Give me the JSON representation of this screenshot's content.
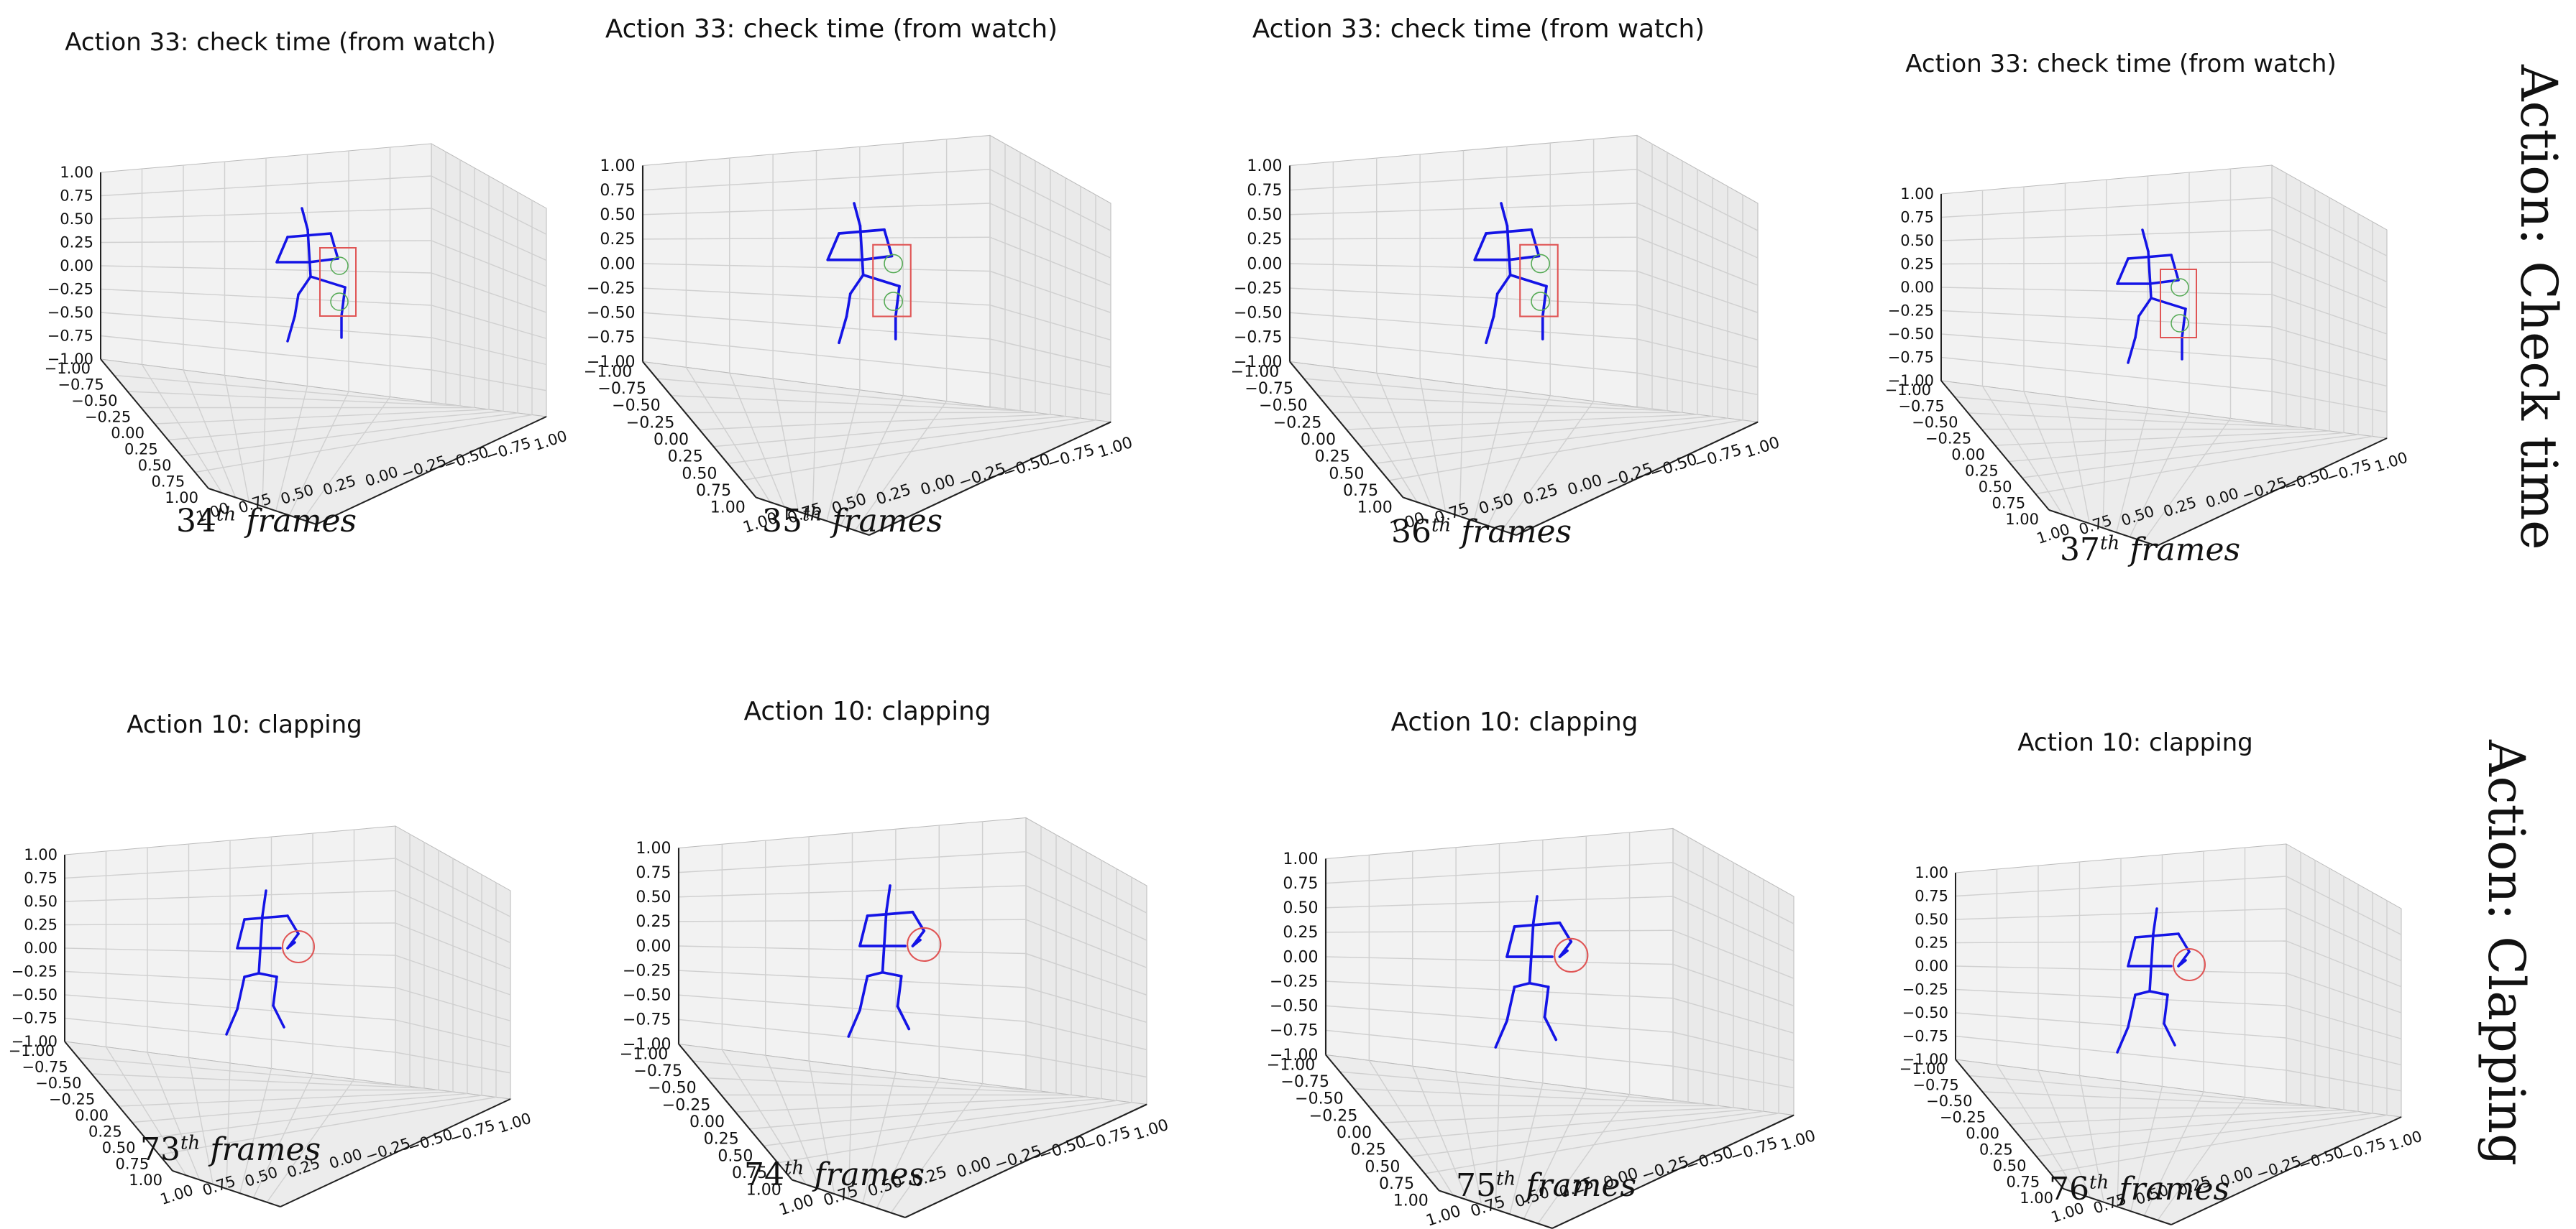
{
  "rows": [
    {
      "row_label": "Action: Check time",
      "panels": [
        {
          "title": "Action 33: check time (from watch)",
          "frame_number": "34",
          "frame_suffix": "th",
          "frame_word": "frames",
          "highlight": "box"
        },
        {
          "title": "Action 33: check time (from watch)",
          "frame_number": "35",
          "frame_suffix": "th",
          "frame_word": "frames",
          "highlight": "box"
        },
        {
          "title": "Action 33: check time (from watch)",
          "frame_number": "36",
          "frame_suffix": "th",
          "frame_word": "frames",
          "highlight": "box"
        },
        {
          "title": "Action 33: check time (from watch)",
          "frame_number": "37",
          "frame_suffix": "th",
          "frame_word": "frames",
          "highlight": "box"
        }
      ]
    },
    {
      "row_label": "Action: Clapping",
      "panels": [
        {
          "title": "Action 10: clapping",
          "frame_number": "73",
          "frame_suffix": "th",
          "frame_word": "frames",
          "highlight": "circle"
        },
        {
          "title": "Action 10: clapping",
          "frame_number": "74",
          "frame_suffix": "th",
          "frame_word": "frames",
          "highlight": "circle"
        },
        {
          "title": "Action 10: clapping",
          "frame_number": "75",
          "frame_suffix": "th",
          "frame_word": "frames",
          "highlight": "circle"
        },
        {
          "title": "Action 10: clapping",
          "frame_number": "76",
          "frame_suffix": "th",
          "frame_word": "frames",
          "highlight": "circle"
        }
      ]
    }
  ],
  "axes": {
    "z_ticks": [
      "1.00",
      "0.75",
      "0.50",
      "0.25",
      "0.00",
      "−0.25",
      "−0.50",
      "−0.75",
      "−1.00"
    ],
    "left_floor_ticks": [
      "−1.00",
      "−0.75",
      "−0.50",
      "−0.25",
      "0.00",
      "0.25",
      "0.50",
      "0.75",
      "1.00"
    ],
    "right_floor_ticks": [
      "1.00",
      "0.75",
      "0.50",
      "0.25",
      "0.00",
      "−0.25",
      "−0.50",
      "−0.75",
      "1.00"
    ]
  },
  "colors": {
    "skeleton": "#1414e6",
    "highlight_box": "#e05555",
    "highlight_circle": "#e05555",
    "joint_marker": "#55aa55",
    "grid": "#d0d0d0",
    "pane": "#f2f2f2"
  }
}
